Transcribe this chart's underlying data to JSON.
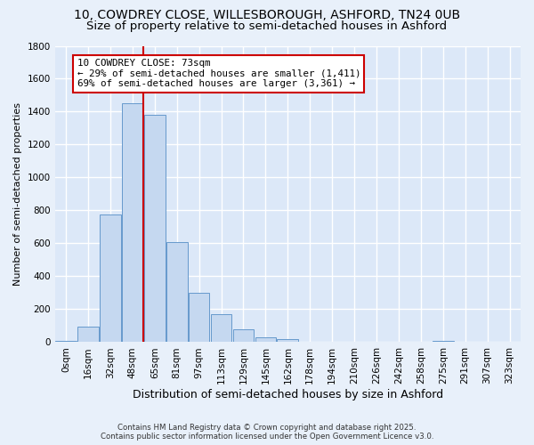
{
  "title_line1": "10, COWDREY CLOSE, WILLESBOROUGH, ASHFORD, TN24 0UB",
  "title_line2": "Size of property relative to semi-detached houses in Ashford",
  "xlabel": "Distribution of semi-detached houses by size in Ashford",
  "ylabel": "Number of semi-detached properties",
  "footer": "Contains HM Land Registry data © Crown copyright and database right 2025.\nContains public sector information licensed under the Open Government Licence v3.0.",
  "bin_labels": [
    "0sqm",
    "16sqm",
    "32sqm",
    "48sqm",
    "65sqm",
    "81sqm",
    "97sqm",
    "113sqm",
    "129sqm",
    "145sqm",
    "162sqm",
    "178sqm",
    "194sqm",
    "210sqm",
    "226sqm",
    "242sqm",
    "258sqm",
    "275sqm",
    "291sqm",
    "307sqm",
    "323sqm"
  ],
  "bar_heights": [
    10,
    95,
    775,
    1450,
    1380,
    610,
    300,
    170,
    80,
    30,
    20,
    0,
    0,
    0,
    0,
    0,
    0,
    10,
    0,
    0,
    0
  ],
  "bar_color": "#c5d8f0",
  "bar_edge_color": "#6699cc",
  "vline_x": 3.5,
  "annotation_text": "10 COWDREY CLOSE: 73sqm\n← 29% of semi-detached houses are smaller (1,411)\n69% of semi-detached houses are larger (3,361) →",
  "annotation_box_color": "#ffffff",
  "annotation_box_edge": "#cc0000",
  "vline_color": "#cc0000",
  "ylim": [
    0,
    1800
  ],
  "yticks": [
    0,
    200,
    400,
    600,
    800,
    1000,
    1200,
    1400,
    1600,
    1800
  ],
  "bg_color": "#e8f0fa",
  "plot_bg": "#dce8f8",
  "grid_color": "#ffffff",
  "title_fontsize": 10,
  "subtitle_fontsize": 9.5,
  "annotation_fontsize": 7.8,
  "ylabel_fontsize": 8,
  "xlabel_fontsize": 9,
  "footer_fontsize": 6.2,
  "tick_fontsize": 7.5
}
